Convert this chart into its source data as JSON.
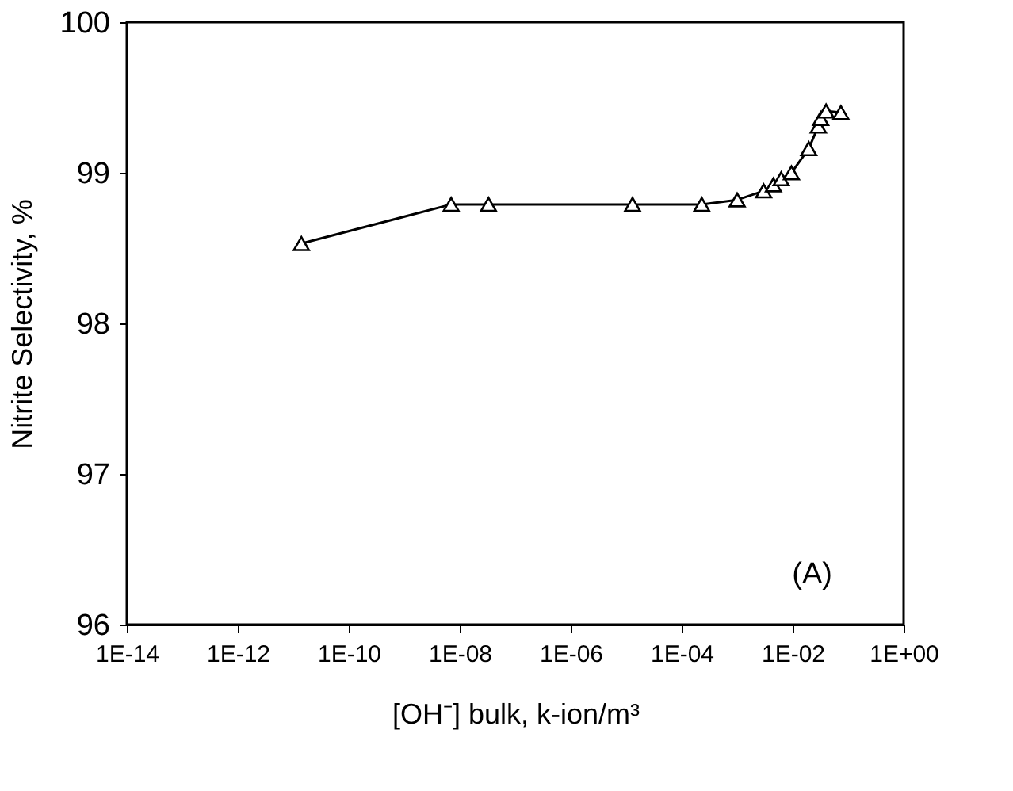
{
  "chart_data": {
    "type": "line",
    "xlabel": "[OH⁻] bulk, k-ion/m³",
    "ylabel": "Nitrite Selectivity, %",
    "log": "x",
    "grid": false,
    "marker": "triangle",
    "line_style": "solid",
    "x": [
      1.4e-11,
      7e-09,
      3.3e-08,
      1.3e-05,
      0.00023,
      0.001,
      0.003,
      0.0045,
      0.0062,
      0.0095,
      0.0195,
      0.029,
      0.032,
      0.04,
      0.074
    ],
    "series": [
      {
        "color": "#000000",
        "values": [
          98.53,
          98.79,
          98.79,
          98.79,
          98.79,
          98.82,
          98.88,
          98.92,
          98.96,
          99.0,
          99.16,
          99.31,
          99.36,
          99.41,
          99.4
        ]
      }
    ],
    "xlim": [
      1e-14,
      1
    ],
    "xticks": [
      {
        "value": 1e-14,
        "label": "1E-14"
      },
      {
        "value": 1e-12,
        "label": "1E-12"
      },
      {
        "value": 1e-10,
        "label": "1E-10"
      },
      {
        "value": 1e-08,
        "label": "1E-08"
      },
      {
        "value": 1e-06,
        "label": "1E-06"
      },
      {
        "value": 0.0001,
        "label": "1E-04"
      },
      {
        "value": 0.01,
        "label": "1E-02"
      },
      {
        "value": 1,
        "label": "1E+00"
      }
    ],
    "ylim": [
      96,
      100
    ],
    "yticks": [
      96,
      97,
      98,
      99,
      100
    ],
    "annotations": [
      "(A)"
    ]
  }
}
